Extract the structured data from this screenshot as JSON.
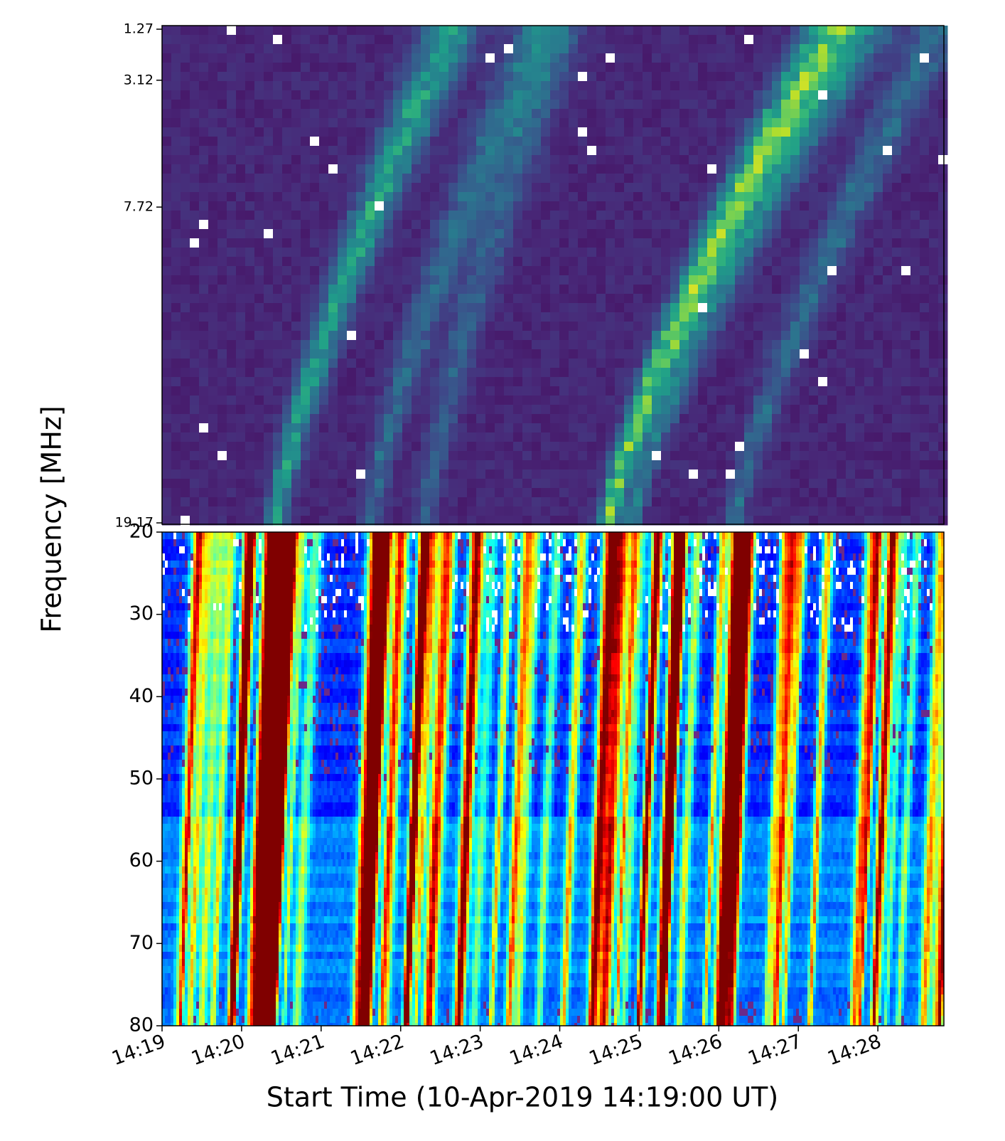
{
  "chart_data": [
    {
      "type": "heatmap",
      "colormap": "viridis",
      "ylim": [
        1.14,
        19.22
      ],
      "yticks": [
        1.27,
        3.12,
        7.72,
        19.17
      ],
      "xlim": [
        0,
        9.83
      ]
    },
    {
      "type": "heatmap",
      "colormap": "jet",
      "ylabel": "Frequency  [MHz]",
      "xlabel": "Start Time (10-Apr-2019 14:19:00 UT)",
      "ylim": [
        20,
        80
      ],
      "yticks": [
        20,
        30,
        40,
        50,
        60,
        70,
        80
      ],
      "xlim": [
        0,
        9.83
      ],
      "xticks": [
        {
          "value": 0,
          "label": "14:19"
        },
        {
          "value": 1,
          "label": "14:20"
        },
        {
          "value": 2,
          "label": "14:21"
        },
        {
          "value": 3,
          "label": "14:22"
        },
        {
          "value": 4,
          "label": "14:23"
        },
        {
          "value": 5,
          "label": "14:24"
        },
        {
          "value": 6,
          "label": "14:25"
        },
        {
          "value": 7,
          "label": "14:26"
        },
        {
          "value": 8,
          "label": "14:27"
        },
        {
          "value": 9,
          "label": "14:28"
        }
      ]
    }
  ]
}
